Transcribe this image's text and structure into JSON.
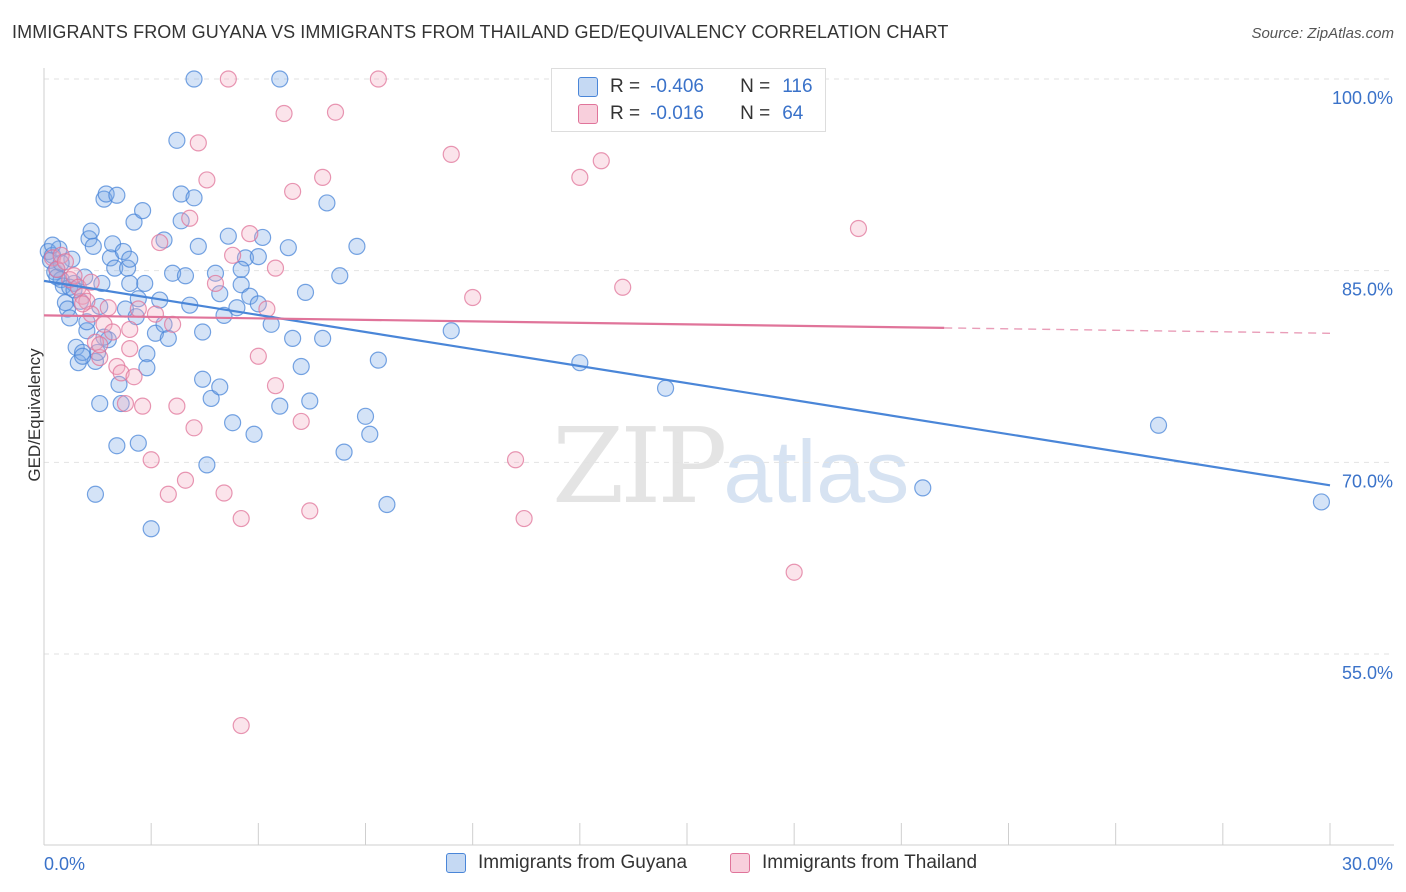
{
  "title": "IMMIGRANTS FROM GUYANA VS IMMIGRANTS FROM THAILAND GED/EQUIVALENCY CORRELATION CHART",
  "source": "Source: ZipAtlas.com",
  "watermark": {
    "zip": "ZIP",
    "atlas": "atlas"
  },
  "stats": [
    {
      "r_label": "R =",
      "r_value": "-0.406",
      "n_label": "N =",
      "n_value": "116",
      "color": "#4a86d8"
    },
    {
      "r_label": "R =",
      "r_value": "-0.016",
      "n_label": "N =",
      "n_value": "64",
      "color": "#e0749a"
    }
  ],
  "legend": [
    {
      "label": "Immigrants from Guyana",
      "color": "#4a86d8"
    },
    {
      "label": "Immigrants from Thailand",
      "color": "#e0749a"
    }
  ],
  "chart_data": {
    "type": "scatter",
    "title": "IMMIGRANTS FROM GUYANA VS IMMIGRANTS FROM THAILAND GED/EQUIVALENCY CORRELATION CHART",
    "xlabel": "",
    "ylabel": "GED/Equivalency",
    "xlim": [
      0,
      30
    ],
    "ylim": [
      40,
      102
    ],
    "x_tick_labels": [
      "0.0%",
      "30.0%"
    ],
    "y_ticks": [
      55,
      70,
      85,
      100
    ],
    "y_tick_labels": [
      "55.0%",
      "70.0%",
      "85.0%",
      "100.0%"
    ],
    "grid": true,
    "series": [
      {
        "name": "Immigrants from Guyana",
        "color": "#4a86d8",
        "trend": {
          "x0": 0,
          "y0": 84.2,
          "x1": 30,
          "y1": 68.2,
          "dashed_from": null
        },
        "points": [
          [
            0.1,
            86.5
          ],
          [
            0.15,
            85.8
          ],
          [
            0.2,
            86.2
          ],
          [
            0.25,
            84.9
          ],
          [
            0.3,
            85.1
          ],
          [
            0.35,
            86.7
          ],
          [
            0.4,
            84.3
          ],
          [
            0.45,
            83.8
          ],
          [
            0.5,
            82.5
          ],
          [
            0.55,
            82.0
          ],
          [
            0.6,
            81.3
          ],
          [
            0.65,
            85.9
          ],
          [
            0.7,
            84.0
          ],
          [
            0.75,
            79.0
          ],
          [
            0.8,
            77.8
          ],
          [
            0.85,
            82.6
          ],
          [
            0.9,
            78.6
          ],
          [
            0.95,
            84.5
          ],
          [
            1.0,
            80.3
          ],
          [
            1.05,
            87.5
          ],
          [
            1.1,
            88.1
          ],
          [
            1.15,
            86.9
          ],
          [
            1.2,
            77.9
          ],
          [
            1.25,
            78.6
          ],
          [
            1.3,
            82.2
          ],
          [
            1.35,
            84.0
          ],
          [
            1.4,
            90.6
          ],
          [
            1.45,
            91.0
          ],
          [
            1.5,
            79.6
          ],
          [
            1.55,
            86.0
          ],
          [
            1.6,
            87.1
          ],
          [
            1.65,
            85.2
          ],
          [
            1.7,
            90.9
          ],
          [
            1.75,
            76.1
          ],
          [
            1.8,
            74.6
          ],
          [
            1.85,
            86.5
          ],
          [
            1.9,
            82.0
          ],
          [
            1.95,
            85.2
          ],
          [
            2.0,
            84.0
          ],
          [
            2.1,
            88.8
          ],
          [
            2.15,
            81.4
          ],
          [
            2.2,
            71.5
          ],
          [
            2.3,
            89.7
          ],
          [
            2.35,
            84.0
          ],
          [
            2.4,
            78.5
          ],
          [
            2.5,
            64.8
          ],
          [
            2.6,
            80.1
          ],
          [
            2.7,
            82.7
          ],
          [
            2.8,
            80.8
          ],
          [
            2.9,
            79.7
          ],
          [
            3.0,
            84.8
          ],
          [
            3.1,
            95.2
          ],
          [
            3.2,
            91.0
          ],
          [
            3.3,
            84.6
          ],
          [
            3.4,
            82.3
          ],
          [
            3.5,
            90.7
          ],
          [
            3.6,
            86.9
          ],
          [
            3.7,
            76.5
          ],
          [
            3.8,
            69.8
          ],
          [
            3.9,
            75.0
          ],
          [
            4.0,
            84.8
          ],
          [
            4.1,
            75.9
          ],
          [
            4.2,
            81.5
          ],
          [
            4.3,
            87.7
          ],
          [
            4.4,
            73.1
          ],
          [
            4.5,
            82.1
          ],
          [
            4.6,
            83.9
          ],
          [
            4.7,
            86.0
          ],
          [
            4.8,
            83.0
          ],
          [
            4.9,
            72.2
          ],
          [
            5.0,
            86.1
          ],
          [
            5.1,
            87.6
          ],
          [
            5.3,
            80.8
          ],
          [
            5.5,
            74.4
          ],
          [
            5.7,
            86.8
          ],
          [
            5.8,
            79.7
          ],
          [
            6.0,
            77.5
          ],
          [
            6.1,
            83.3
          ],
          [
            6.2,
            74.8
          ],
          [
            6.5,
            79.7
          ],
          [
            6.6,
            90.3
          ],
          [
            6.9,
            84.6
          ],
          [
            7.0,
            70.8
          ],
          [
            7.3,
            86.9
          ],
          [
            7.5,
            73.6
          ],
          [
            7.6,
            72.2
          ],
          [
            7.8,
            78.0
          ],
          [
            8.0,
            66.7
          ],
          [
            1.2,
            67.5
          ],
          [
            2.2,
            82.8
          ],
          [
            3.5,
            100.0
          ],
          [
            5.5,
            100.0
          ],
          [
            9.5,
            80.3
          ],
          [
            12.5,
            77.8
          ],
          [
            14.5,
            75.8
          ],
          [
            20.5,
            68.0
          ],
          [
            26.0,
            72.9
          ],
          [
            29.8,
            66.9
          ],
          [
            0.3,
            84.5
          ],
          [
            0.6,
            83.7
          ],
          [
            0.9,
            78.3
          ],
          [
            1.3,
            74.6
          ],
          [
            1.7,
            71.3
          ],
          [
            2.0,
            85.9
          ],
          [
            2.4,
            77.4
          ],
          [
            2.8,
            87.4
          ],
          [
            3.2,
            88.9
          ],
          [
            3.7,
            80.2
          ],
          [
            4.1,
            83.2
          ],
          [
            4.6,
            85.1
          ],
          [
            5.0,
            82.4
          ],
          [
            0.2,
            87.0
          ],
          [
            0.4,
            85.6
          ],
          [
            0.7,
            83.5
          ],
          [
            1.0,
            81.0
          ],
          [
            1.4,
            79.8
          ]
        ]
      },
      {
        "name": "Immigrants from Thailand",
        "color": "#e0749a",
        "trend": {
          "x0": 0,
          "y0": 81.5,
          "x1": 30,
          "y1": 80.1,
          "dashed_from": 21.0
        },
        "points": [
          [
            0.2,
            86.0
          ],
          [
            0.3,
            85.1
          ],
          [
            0.4,
            86.2
          ],
          [
            0.5,
            85.7
          ],
          [
            0.6,
            84.3
          ],
          [
            0.7,
            84.6
          ],
          [
            0.8,
            83.7
          ],
          [
            0.9,
            83.0
          ],
          [
            1.0,
            82.6
          ],
          [
            1.1,
            81.6
          ],
          [
            1.2,
            79.4
          ],
          [
            1.3,
            78.2
          ],
          [
            1.4,
            80.8
          ],
          [
            1.5,
            82.1
          ],
          [
            1.6,
            80.2
          ],
          [
            1.7,
            77.5
          ],
          [
            1.8,
            77.0
          ],
          [
            1.9,
            74.6
          ],
          [
            2.0,
            78.9
          ],
          [
            2.1,
            76.7
          ],
          [
            2.2,
            82.0
          ],
          [
            2.3,
            74.4
          ],
          [
            2.5,
            70.2
          ],
          [
            2.7,
            87.2
          ],
          [
            2.9,
            67.5
          ],
          [
            3.0,
            80.8
          ],
          [
            3.1,
            74.4
          ],
          [
            3.3,
            68.6
          ],
          [
            3.5,
            72.7
          ],
          [
            3.6,
            95.0
          ],
          [
            3.8,
            92.1
          ],
          [
            4.0,
            84.0
          ],
          [
            4.2,
            67.6
          ],
          [
            4.4,
            86.2
          ],
          [
            4.6,
            65.6
          ],
          [
            4.8,
            87.9
          ],
          [
            5.0,
            78.3
          ],
          [
            5.2,
            82.0
          ],
          [
            5.4,
            76.0
          ],
          [
            5.6,
            97.3
          ],
          [
            5.8,
            91.2
          ],
          [
            6.0,
            73.2
          ],
          [
            6.2,
            66.2
          ],
          [
            6.5,
            92.3
          ],
          [
            6.8,
            97.4
          ],
          [
            7.8,
            100.0
          ],
          [
            9.5,
            94.1
          ],
          [
            10.0,
            82.9
          ],
          [
            11.0,
            70.2
          ],
          [
            11.2,
            65.6
          ],
          [
            12.5,
            92.3
          ],
          [
            13.0,
            93.6
          ],
          [
            13.5,
            83.7
          ],
          [
            19.0,
            88.3
          ],
          [
            17.5,
            61.4
          ],
          [
            4.6,
            49.4
          ],
          [
            3.4,
            89.1
          ],
          [
            2.0,
            80.4
          ],
          [
            1.3,
            79.2
          ],
          [
            0.9,
            82.4
          ],
          [
            1.1,
            84.1
          ],
          [
            4.3,
            100.0
          ],
          [
            5.4,
            85.2
          ],
          [
            2.6,
            81.6
          ]
        ]
      }
    ]
  }
}
